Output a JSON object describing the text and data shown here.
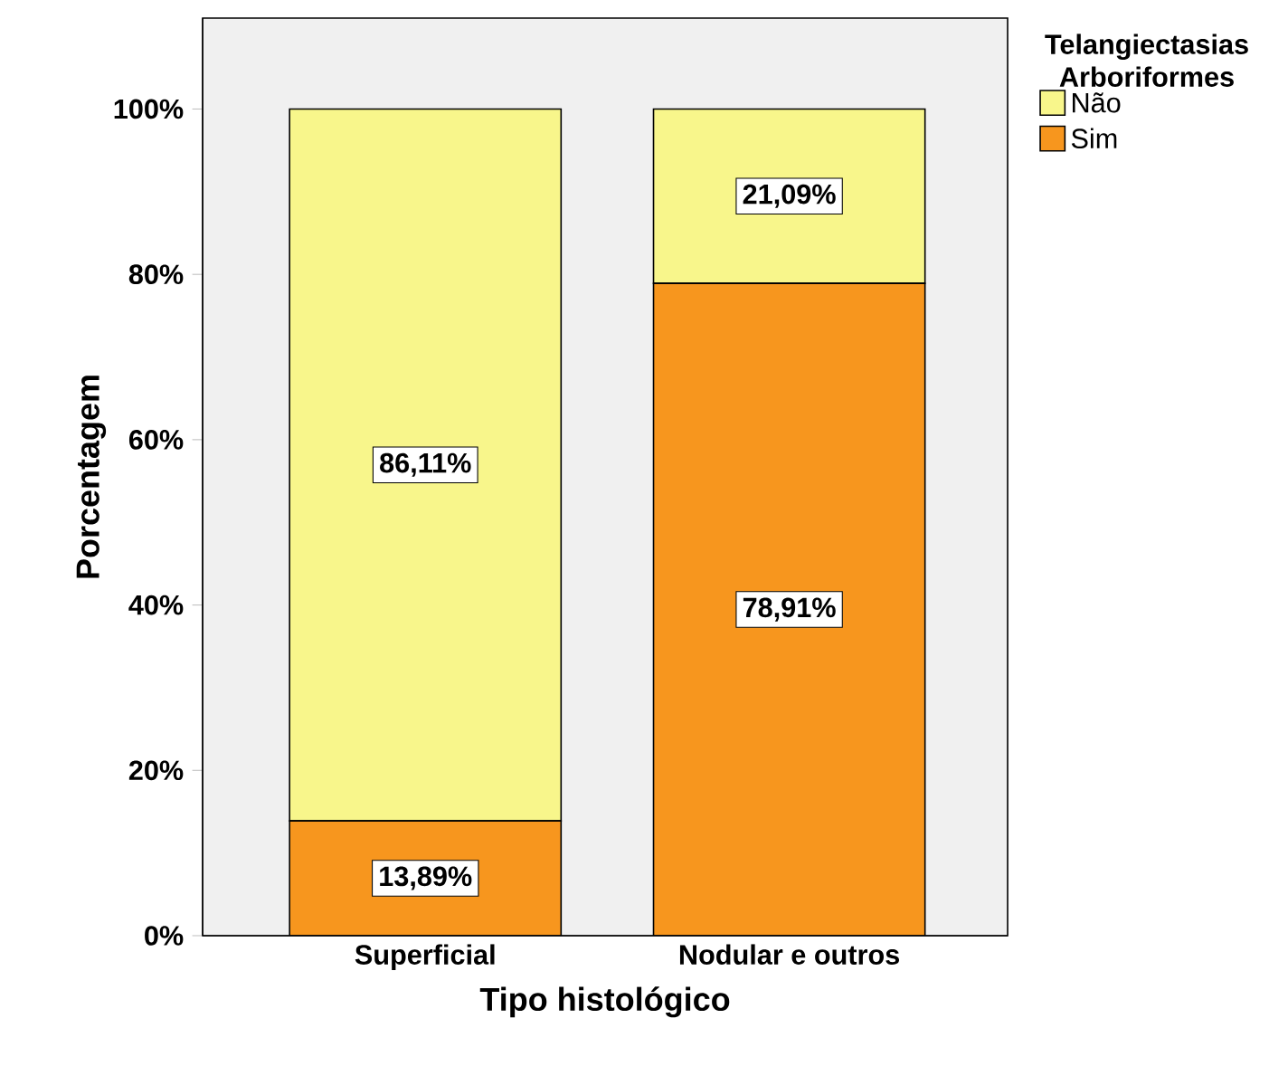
{
  "chart_data": {
    "type": "bar",
    "stacked": true,
    "xlabel": "Tipo histológico",
    "ylabel": "Porcentagem",
    "legend_title": "Telangiectasias Arboriformes",
    "categories": [
      "Superficial",
      "Nodular e outros"
    ],
    "series": [
      {
        "name": "Sim",
        "color": "#f7961e",
        "values": [
          13.89,
          78.91
        ],
        "value_labels": [
          "13,89%",
          "78,91%"
        ]
      },
      {
        "name": "Não",
        "color": "#f8f68b",
        "values": [
          86.11,
          21.09
        ],
        "value_labels": [
          "86,11%",
          "21,09%"
        ]
      }
    ],
    "ylim": [
      0,
      111
    ],
    "yticks": [
      {
        "value": 0,
        "label": "0%"
      },
      {
        "value": 20,
        "label": "20%"
      },
      {
        "value": 40,
        "label": "40%"
      },
      {
        "value": 60,
        "label": "60%"
      },
      {
        "value": 80,
        "label": "80%"
      },
      {
        "value": 100,
        "label": "100%"
      }
    ],
    "legend": "top right"
  }
}
